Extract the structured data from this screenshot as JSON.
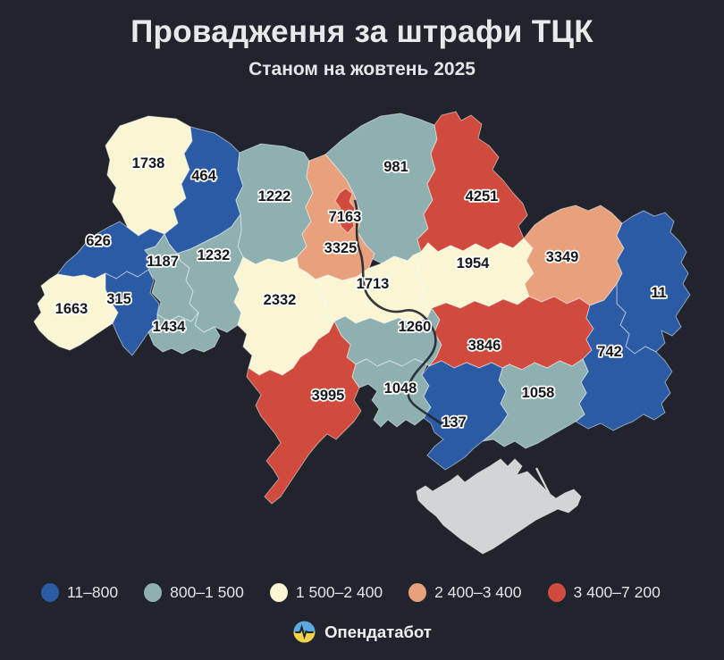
{
  "header": {
    "title": "Провадження за штрафи ТЦК",
    "subtitle": "Станом на жовтень 2025"
  },
  "footer": {
    "brand": "Опендатабот"
  },
  "palette": {
    "background": "#21242d",
    "blue": "#2b5ba4",
    "teal": "#8fb0b1",
    "cream": "#faf6d3",
    "salmon": "#e8a17c",
    "red": "#d04b3d",
    "no_data": "#d3d4d6",
    "label_text": "#17181c",
    "label_halo": "#ffffff",
    "border": "rgba(255,255,255,0.5)",
    "river": "#21242d",
    "logo_blue": "#5ba8dc",
    "logo_yellow": "#f0d44c"
  },
  "chart_data": {
    "type": "heatmap",
    "subtype": "choropleth-map-ukraine",
    "title": "Провадження за штрафи ТЦК",
    "subtitle": "Станом на жовтень 2025",
    "legend_position": "bottom",
    "legend": [
      {
        "label": "11–800",
        "bucket": "blue"
      },
      {
        "label": "800–1 500",
        "bucket": "teal"
      },
      {
        "label": "1 500–2 400",
        "bucket": "cream"
      },
      {
        "label": "2 400–3 400",
        "bucket": "salmon"
      },
      {
        "label": "3 400–7 200",
        "bucket": "red"
      }
    ],
    "value_range": [
      11,
      7200
    ],
    "regions": [
      {
        "id": "volyn",
        "value": 1738,
        "bucket": "cream"
      },
      {
        "id": "rivne",
        "value": 464,
        "bucket": "blue"
      },
      {
        "id": "zhytomyr",
        "value": 1222,
        "bucket": "teal"
      },
      {
        "id": "chernihiv",
        "value": 981,
        "bucket": "teal"
      },
      {
        "id": "sumy",
        "value": 4251,
        "bucket": "red"
      },
      {
        "id": "kyiv-oblast",
        "value": 3325,
        "bucket": "salmon"
      },
      {
        "id": "poltava",
        "value": 1954,
        "bucket": "cream"
      },
      {
        "id": "kharkiv",
        "value": 3349,
        "bucket": "salmon"
      },
      {
        "id": "luhansk",
        "value": 11,
        "bucket": "blue"
      },
      {
        "id": "lviv",
        "value": 626,
        "bucket": "blue"
      },
      {
        "id": "ternopil",
        "value": 1187,
        "bucket": "teal"
      },
      {
        "id": "khmelnytskyi",
        "value": 1232,
        "bucket": "teal"
      },
      {
        "id": "zakarpattia",
        "value": 1663,
        "bucket": "cream"
      },
      {
        "id": "ivano-frankivsk",
        "value": 315,
        "bucket": "blue"
      },
      {
        "id": "chernivtsi",
        "value": 1434,
        "bucket": "teal"
      },
      {
        "id": "vinnytsia",
        "value": 2332,
        "bucket": "cream"
      },
      {
        "id": "cherkasy",
        "value": 1713,
        "bucket": "cream"
      },
      {
        "id": "kirovohrad",
        "value": 1260,
        "bucket": "teal"
      },
      {
        "id": "dnipro",
        "value": 3846,
        "bucket": "red"
      },
      {
        "id": "donetsk",
        "value": 742,
        "bucket": "blue"
      },
      {
        "id": "zaporizhzhia",
        "value": 1058,
        "bucket": "teal"
      },
      {
        "id": "odesa",
        "value": 3995,
        "bucket": "red"
      },
      {
        "id": "mykolaiv",
        "value": 1048,
        "bucket": "teal"
      },
      {
        "id": "kherson",
        "value": 137,
        "bucket": "blue"
      },
      {
        "id": "crimea",
        "value": null,
        "bucket": "no_data"
      },
      {
        "id": "kyiv-city",
        "value": 7163,
        "bucket": "red"
      }
    ]
  }
}
